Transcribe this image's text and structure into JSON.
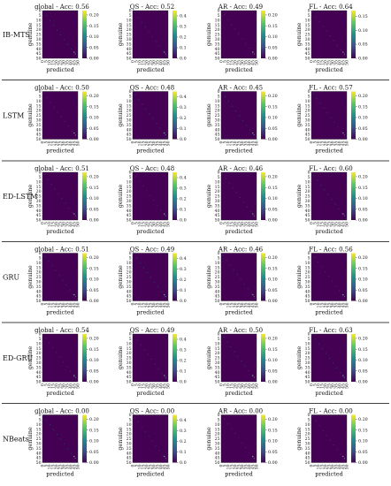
{
  "figure": {
    "models": [
      "IB-MTS",
      "LSTM",
      "ED-LSTM",
      "GRU",
      "ED-GRU",
      "NBeats"
    ]
  },
  "chart_data": [
    {
      "type": "heatmap",
      "model": "IB-MTS",
      "panels": [
        {
          "title": "global - Acc: 0.56",
          "colorbar_ticks": [
            "0.00",
            "0.05",
            "0.10",
            "0.15",
            "0.20"
          ],
          "zmax": 0.22
        },
        {
          "title": "QS - Acc: 0.52",
          "colorbar_ticks": [
            "0.0",
            "0.1",
            "0.2",
            "0.3",
            "0.4"
          ],
          "zmax": 0.45
        },
        {
          "title": "AR - Acc: 0.49",
          "colorbar_ticks": [
            "0.00",
            "0.05",
            "0.10",
            "0.15",
            "0.20"
          ],
          "zmax": 0.22
        },
        {
          "title": "FL - Acc: 0.64",
          "colorbar_ticks": [
            "0.00",
            "0.05",
            "0.10",
            "0.15"
          ],
          "zmax": 0.17
        }
      ]
    },
    {
      "type": "heatmap",
      "model": "LSTM",
      "panels": [
        {
          "title": "global - Acc: 0.50",
          "colorbar_ticks": [
            "0.00",
            "0.05",
            "0.10",
            "0.15",
            "0.20"
          ],
          "zmax": 0.22
        },
        {
          "title": "QS - Acc: 0.48",
          "colorbar_ticks": [
            "0.0",
            "0.1",
            "0.2",
            "0.3",
            "0.4"
          ],
          "zmax": 0.45
        },
        {
          "title": "AR - Acc: 0.45",
          "colorbar_ticks": [
            "0.00",
            "0.05",
            "0.10",
            "0.15",
            "0.20"
          ],
          "zmax": 0.22
        },
        {
          "title": "FL - Acc: 0.57",
          "colorbar_ticks": [
            "0.00",
            "0.05",
            "0.10",
            "0.15",
            "0.20"
          ],
          "zmax": 0.22
        }
      ]
    },
    {
      "type": "heatmap",
      "model": "ED-LSTM",
      "panels": [
        {
          "title": "global - Acc: 0.51",
          "colorbar_ticks": [
            "0.00",
            "0.05",
            "0.10",
            "0.15",
            "0.20"
          ],
          "zmax": 0.22
        },
        {
          "title": "QS - Acc: 0.48",
          "colorbar_ticks": [
            "0.0",
            "0.1",
            "0.2",
            "0.3",
            "0.4"
          ],
          "zmax": 0.45
        },
        {
          "title": "AR - Acc: 0.46",
          "colorbar_ticks": [
            "0.00",
            "0.05",
            "0.10",
            "0.15",
            "0.20"
          ],
          "zmax": 0.22
        },
        {
          "title": "FL - Acc: 0.60",
          "colorbar_ticks": [
            "0.00",
            "0.05",
            "0.10",
            "0.15",
            "0.20"
          ],
          "zmax": 0.22
        }
      ]
    },
    {
      "type": "heatmap",
      "model": "GRU",
      "panels": [
        {
          "title": "global - Acc: 0.51",
          "colorbar_ticks": [
            "0.00",
            "0.05",
            "0.10",
            "0.15",
            "0.20"
          ],
          "zmax": 0.22
        },
        {
          "title": "QS - Acc: 0.49",
          "colorbar_ticks": [
            "0.0",
            "0.1",
            "0.2",
            "0.3",
            "0.4"
          ],
          "zmax": 0.45
        },
        {
          "title": "AR - Acc: 0.46",
          "colorbar_ticks": [
            "0.00",
            "0.05",
            "0.10",
            "0.15",
            "0.20"
          ],
          "zmax": 0.22
        },
        {
          "title": "FL - Acc: 0.56",
          "colorbar_ticks": [
            "0.00",
            "0.05",
            "0.10",
            "0.15",
            "0.20"
          ],
          "zmax": 0.22
        }
      ]
    },
    {
      "type": "heatmap",
      "model": "ED-GRU",
      "panels": [
        {
          "title": "global - Acc: 0.54",
          "colorbar_ticks": [
            "0.00",
            "0.05",
            "0.10",
            "0.15",
            "0.20"
          ],
          "zmax": 0.22
        },
        {
          "title": "QS - Acc: 0.49",
          "colorbar_ticks": [
            "0.0",
            "0.1",
            "0.2",
            "0.3",
            "0.4"
          ],
          "zmax": 0.45
        },
        {
          "title": "AR - Acc: 0.50",
          "colorbar_ticks": [
            "0.00",
            "0.05",
            "0.10",
            "0.15",
            "0.20"
          ],
          "zmax": 0.22
        },
        {
          "title": "FL - Acc: 0.63",
          "colorbar_ticks": [
            "0.00",
            "0.05",
            "0.10",
            "0.15",
            "0.20"
          ],
          "zmax": 0.22
        }
      ]
    },
    {
      "type": "heatmap",
      "model": "NBeats",
      "panels": [
        {
          "title": "global - Acc: 0.00",
          "colorbar_ticks": [
            "0.00",
            "0.05",
            "0.10",
            "0.15",
            "0.20"
          ],
          "zmax": 0.22
        },
        {
          "title": "QS - Acc: 0.00",
          "colorbar_ticks": [
            "0.0",
            "0.1",
            "0.2",
            "0.3",
            "0.4"
          ],
          "zmax": 0.45
        },
        {
          "title": "AR - Acc: 0.00",
          "colorbar_ticks": [
            "0.00",
            "0.05",
            "0.10",
            "0.15",
            "0.20"
          ],
          "zmax": 0.22
        },
        {
          "title": "FL - Acc: 0.00",
          "colorbar_ticks": [
            "0.00",
            "0.05",
            "0.10",
            "0.15",
            "0.20"
          ],
          "zmax": 0.22
        }
      ]
    }
  ],
  "axes": {
    "xlabel": "predicted",
    "ylabel": "genuine",
    "ticks": [
      "0",
      "5",
      "10",
      "15",
      "20",
      "25",
      "30",
      "35",
      "40",
      "45",
      "50"
    ]
  },
  "colors": {
    "background": "#440154",
    "colormap": [
      "#440154",
      "#3b528b",
      "#21908d",
      "#5dc963",
      "#fde725"
    ],
    "separator": "#000000"
  }
}
